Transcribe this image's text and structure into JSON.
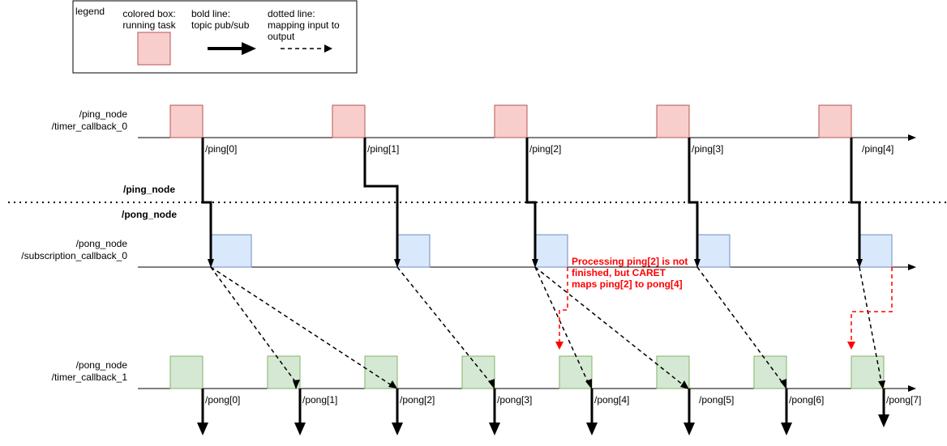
{
  "legend": {
    "title": "legend",
    "colored_box_line1": "colored box:",
    "colored_box_line2": "running task",
    "bold_line_line1": "bold line:",
    "bold_line_line2": "topic pub/sub",
    "dotted_line_line1": "dotted line:",
    "dotted_line_line2": "mapping input to",
    "dotted_line_line3": "output"
  },
  "rows": {
    "ping_timer": {
      "line1": "/ping_node",
      "line2": "/timer_callback_0"
    },
    "pong_sub": {
      "line1": "/pong_node",
      "line2": "/subscription_callback_0"
    },
    "pong_timer": {
      "line1": "/pong_node",
      "line2": "/timer_callback_1"
    }
  },
  "separator": {
    "upper": "/ping_node",
    "lower": "/pong_node"
  },
  "ping_labels": [
    "/ping[0]",
    "/ping[1]",
    "/ping[2]",
    "/ping[3]",
    "/ping[4]"
  ],
  "pong_labels": [
    "/pong[0]",
    "/pong[1]",
    "/pong[2]",
    "/pong[3]",
    "/pong[4]",
    "/pong[5]",
    "/pong[6]",
    "/pong[7]"
  ],
  "annotation": {
    "line1": "Processing ping[2] is not",
    "line2": "finished, but CARET",
    "line3": "maps ping[2] to pong[4]"
  },
  "colors": {
    "ping_box_fill": "#f8cecc",
    "ping_box_stroke": "#b85450",
    "sub_box_fill": "#dae8fc",
    "sub_box_stroke": "#6c8ebf",
    "pong_box_fill": "#d5e8d4",
    "pong_box_stroke": "#82b366",
    "annotation": "#ff0000"
  }
}
